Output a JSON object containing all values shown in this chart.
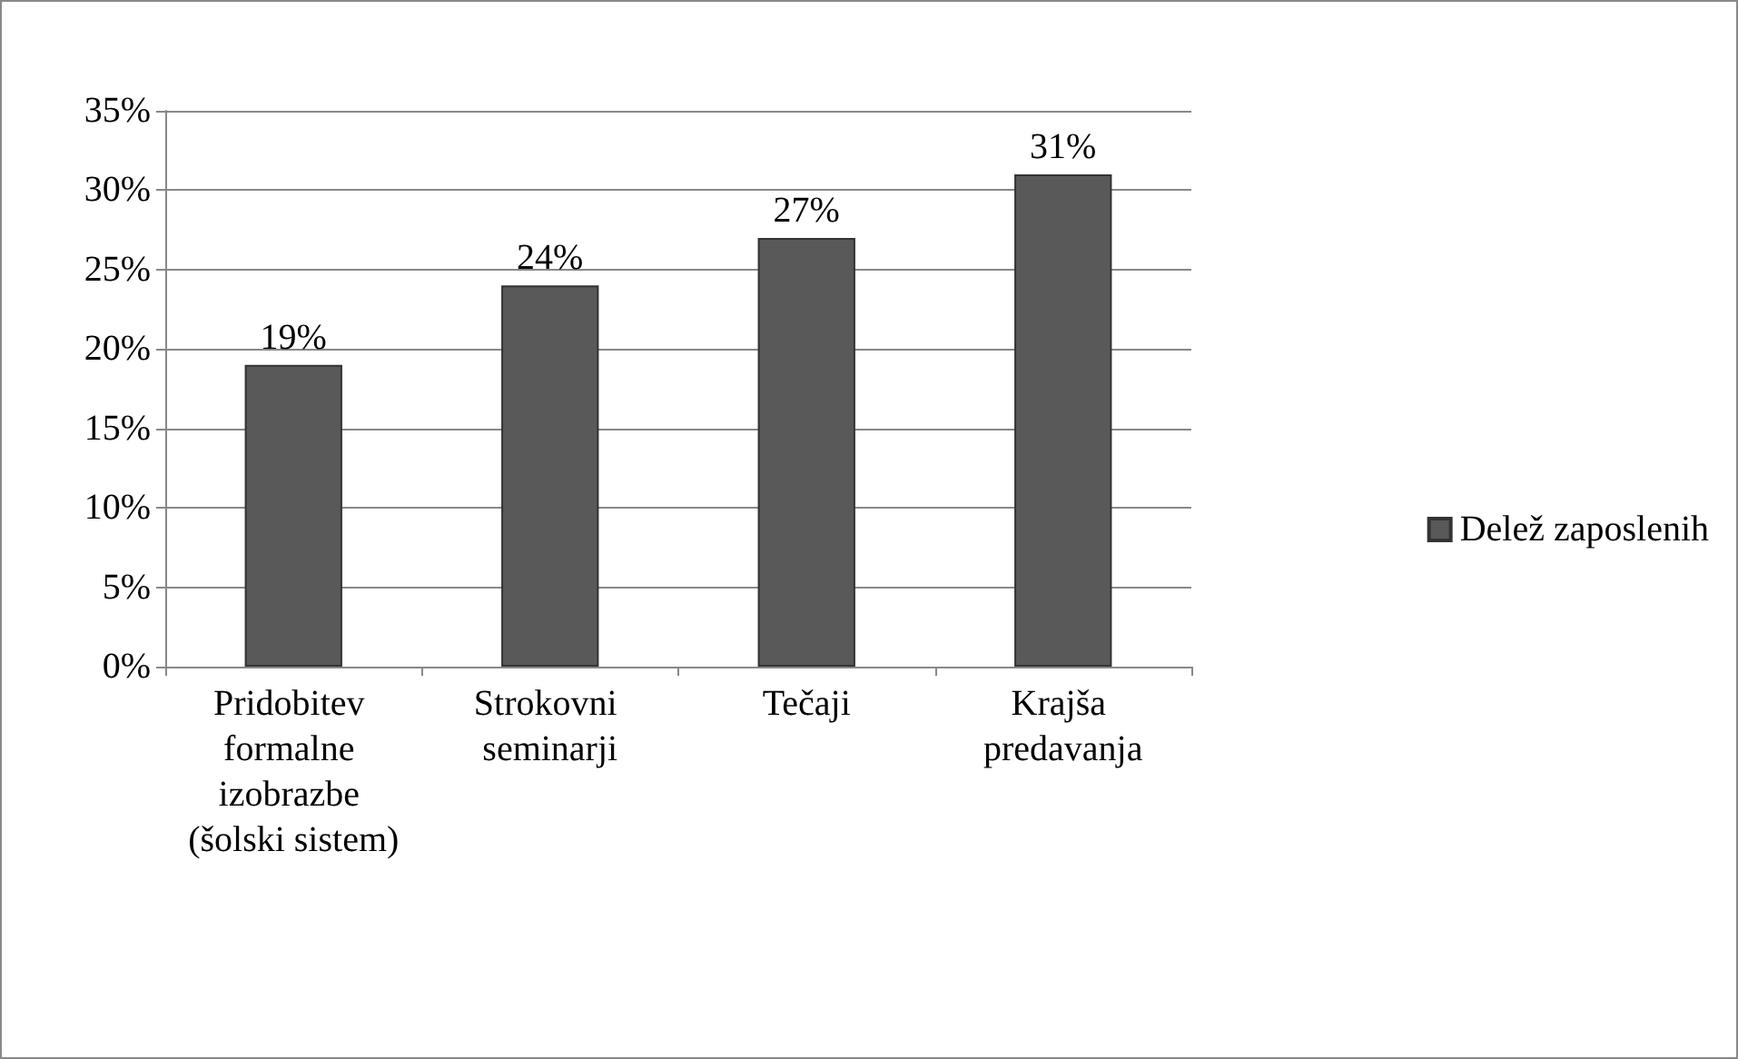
{
  "chart_data": {
    "type": "bar",
    "categories": [
      "Pridobitev formalne izobrazbe (šolski sistem)",
      "Strokovni seminarji",
      "Tečaji",
      "Krajša predavanja"
    ],
    "series": [
      {
        "name": "Delež zaposlenih",
        "color": "#595959",
        "values": [
          19,
          24,
          27,
          31
        ],
        "value_labels": [
          "19%",
          "24%",
          "27%",
          "31%"
        ]
      }
    ],
    "ylim": [
      0,
      35
    ],
    "yticks": [
      {
        "value": 0,
        "label": "0%"
      },
      {
        "value": 5,
        "label": "5%"
      },
      {
        "value": 10,
        "label": "10%"
      },
      {
        "value": 15,
        "label": "15%"
      },
      {
        "value": 20,
        "label": "20%"
      },
      {
        "value": 25,
        "label": "25%"
      },
      {
        "value": 30,
        "label": "30%"
      },
      {
        "value": 35,
        "label": "35%"
      }
    ],
    "grid": "y",
    "legend": "right"
  }
}
